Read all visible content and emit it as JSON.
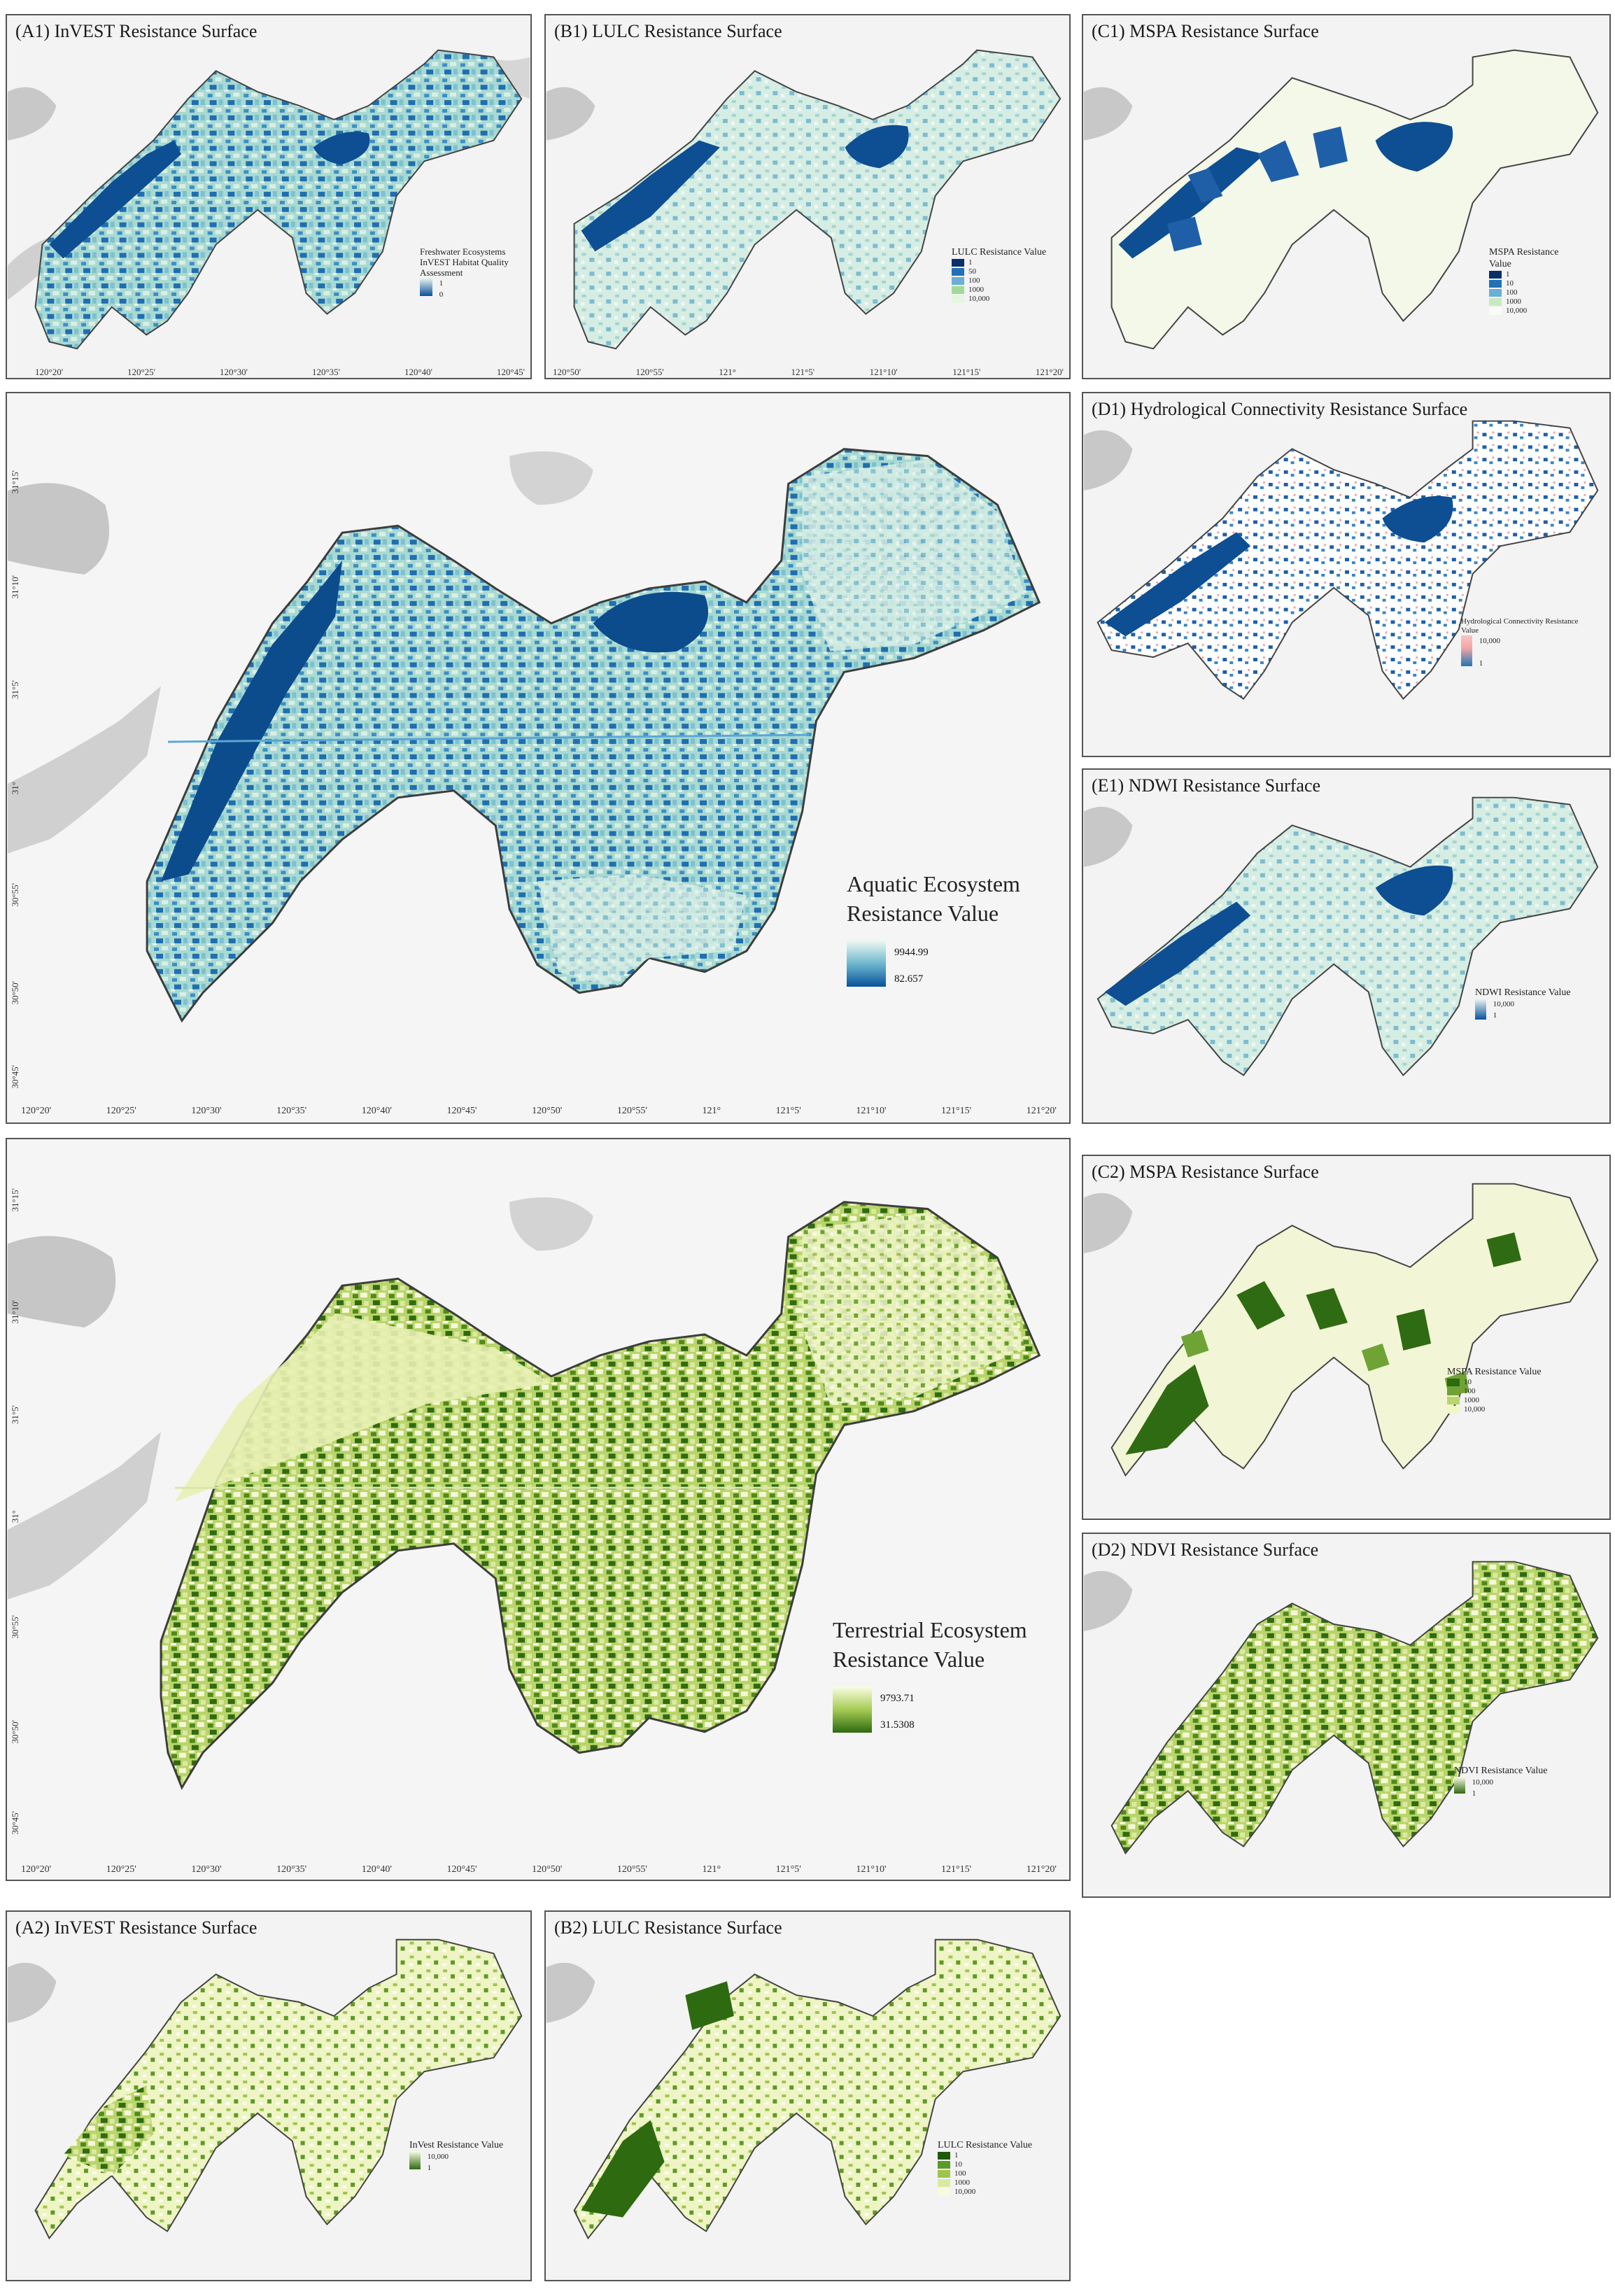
{
  "panels": {
    "a1": {
      "title": "(A1) InVEST Resistance Surface",
      "legend_title": "Freshwater Ecosystems InVEST Habitat Quality Assessment",
      "legend_high": "1",
      "legend_low": "0"
    },
    "b1": {
      "title": "(B1) LULC Resistance Surface",
      "legend_title": "LULC Resistance Value",
      "legend_items": [
        "1",
        "50",
        "100",
        "1000",
        "10,000"
      ]
    },
    "c1": {
      "title": "(C1) MSPA Resistance Surface",
      "legend_title": "MSPA Resistance Value",
      "legend_items": [
        "1",
        "10",
        "100",
        "1000",
        "10,000"
      ]
    },
    "main_aquatic": {
      "legend_title": "Aquatic Ecosystem Resistance Value",
      "legend_high": "9944.99",
      "legend_low": "82.657"
    },
    "d1": {
      "title": "(D1) Hydrological Connectivity Resistance Surface",
      "legend_title": "Hydrological Connectivity Resistance Value",
      "legend_high": "10,000",
      "legend_low": "1"
    },
    "e1": {
      "title": "(E1) NDWI Resistance Surface",
      "legend_title": "NDWI Resistance Value",
      "legend_high": "10,000",
      "legend_low": "1"
    },
    "main_terrestrial": {
      "legend_title": "Terrestrial Ecosystem Resistance Value",
      "legend_high": "9793.71",
      "legend_low": "31.5308"
    },
    "c2": {
      "title": "(C2) MSPA Resistance Surface",
      "legend_title": "MSPA Resistance Value",
      "legend_items": [
        "10",
        "100",
        "1000",
        "10,000"
      ]
    },
    "d2": {
      "title": "(D2) NDVI Resistance Surface",
      "legend_title": "NDVI Resistance Value",
      "legend_high": "10,000",
      "legend_low": "1"
    },
    "a2": {
      "title": "(A2) InVEST Resistance Surface",
      "legend_title": "InVest Resistance Value",
      "legend_high": "10,000",
      "legend_low": "1"
    },
    "b2": {
      "title": "(B2) LULC Resistance Surface",
      "legend_title": "LULC Resistance Value",
      "legend_items": [
        "1",
        "10",
        "100",
        "1000",
        "10,000"
      ]
    }
  },
  "axes": {
    "aquatic_x": [
      "120°20'",
      "120°25'",
      "120°30'",
      "120°35'",
      "120°40'",
      "120°45'",
      "120°50'",
      "120°55'",
      "121°",
      "121°5'",
      "121°10'",
      "121°15'",
      "121°20'"
    ],
    "terrestrial_x": [
      "120°20'",
      "120°25'",
      "120°30'",
      "120°35'",
      "120°40'",
      "120°45'",
      "120°50'",
      "120°55'",
      "121°",
      "121°5'",
      "121°10'",
      "121°15'",
      "121°20'"
    ],
    "top_row_x_a": [
      "120°20'",
      "120°25'",
      "120°30'",
      "120°35'",
      "120°40'",
      "120°45'"
    ],
    "top_row_x_b": [
      "120°50'",
      "120°55'",
      "121°",
      "121°5'",
      "121°10'",
      "121°15'",
      "121°20'"
    ],
    "main_y": [
      "31°15'",
      "31°10'",
      "31°5'",
      "31°",
      "30°55'",
      "30°50'",
      "30°45'"
    ]
  },
  "colors": {
    "aquatic_high": "#e8f5ee",
    "aquatic_mid": "#6fb8cf",
    "aquatic_low": "#08519c",
    "terrestrial_high": "#fbfde4",
    "terrestrial_mid": "#a6cc55",
    "terrestrial_low": "#2d6a10",
    "background_land": "#f2f2f2",
    "lake_gray": "#c8c8c8",
    "hydro_red": "#f4a6a6"
  }
}
